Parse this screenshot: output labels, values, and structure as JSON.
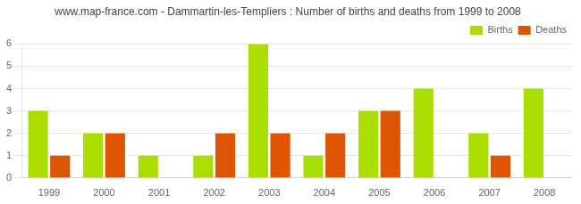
{
  "chart_data": {
    "type": "bar",
    "title": "www.map-france.com - Dammartin-les-Templiers : Number of births and deaths from 1999 to 2008",
    "categories": [
      "1999",
      "2000",
      "2001",
      "2002",
      "2003",
      "2004",
      "2005",
      "2006",
      "2007",
      "2008"
    ],
    "series": [
      {
        "name": "Births",
        "color": "#aadd00",
        "values": [
          3,
          2,
          1,
          1,
          6,
          1,
          3,
          4,
          2,
          4
        ]
      },
      {
        "name": "Deaths",
        "color": "#dd5500",
        "values": [
          1,
          2,
          0,
          2,
          2,
          2,
          3,
          0,
          1,
          0
        ]
      }
    ],
    "ylim": [
      0,
      6
    ],
    "yticks": [
      0,
      1,
      2,
      3,
      4,
      5,
      6
    ],
    "grid": true,
    "legend": "upper right"
  }
}
